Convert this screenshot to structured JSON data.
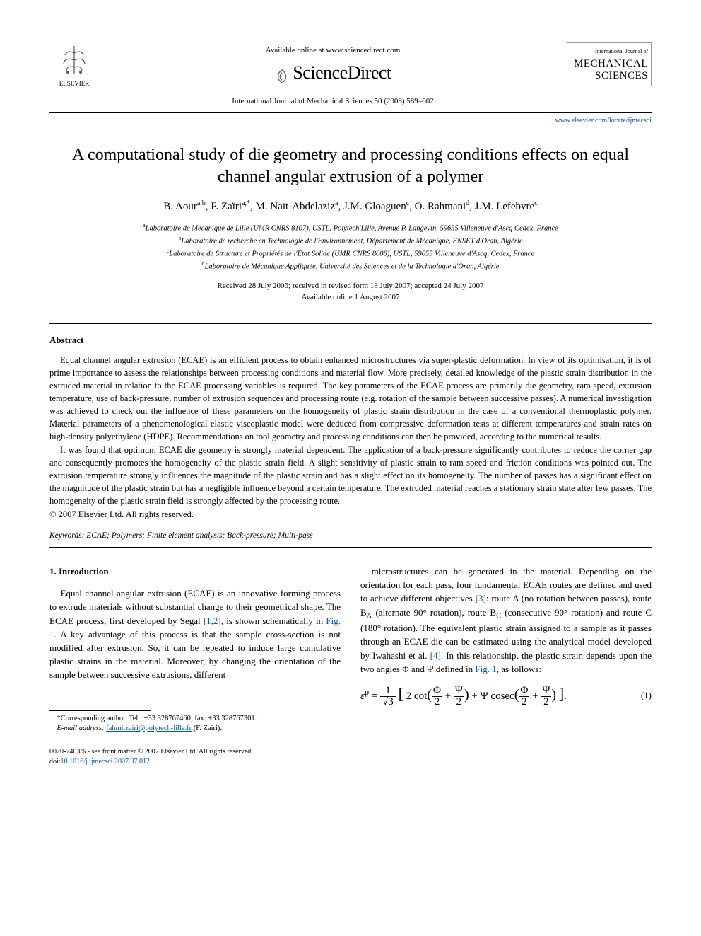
{
  "header": {
    "publisher": "ELSEVIER",
    "available_text": "Available online at www.sciencedirect.com",
    "sd_brand": "ScienceDirect",
    "journal_ref": "International Journal of Mechanical Sciences 50 (2008) 589–602",
    "journal_box_caption": "International Journal of",
    "journal_box_name_l1": "MECHANICAL",
    "journal_box_name_l2": "SCIENCES",
    "locate_url": "www.elsevier.com/locate/ijmecsci"
  },
  "title": "A computational study of die geometry and processing conditions effects on equal channel angular extrusion of a polymer",
  "authors_html": "B. Aour<sup>a,b</sup>, F. Zaïri<sup>a,*</sup>, M. Naït-Abdelaziz<sup>a</sup>, J.M. Gloaguen<sup>c</sup>, O. Rahmani<sup>d</sup>, J.M. Lefebvre<sup>c</sup>",
  "affiliations": {
    "a": "Laboratoire de Mécanique de Lille (UMR CNRS 8107), USTL, Polytech'Lille, Avenue P. Langevin, 59655 Villeneuve d'Ascq Cedex, France",
    "b": "Laboratoire de recherche en Technologie de l'Environnement, Département de Mécanique, ENSET d'Oran, Algérie",
    "c": "Laboratoire de Structure et Propriétés de l'Etat Solide (UMR CNRS 8008), USTL, 59655 Villeneuve d'Ascq, Cedex, France",
    "d": "Laboratoire de Mécanique Appliquée, Université des Sciences et de la Technologie d'Oran, Algérie"
  },
  "dates": {
    "received": "Received 28 July 2006; received in revised form 18 July 2007; accepted 24 July 2007",
    "online": "Available online 1 August 2007"
  },
  "abstract": {
    "heading": "Abstract",
    "p1": "Equal channel angular extrusion (ECAE) is an efficient process to obtain enhanced microstructures via super-plastic deformation. In view of its optimisation, it is of prime importance to assess the relationships between processing conditions and material flow. More precisely, detailed knowledge of the plastic strain distribution in the extruded material in relation to the ECAE processing variables is required. The key parameters of the ECAE process are primarily die geometry, ram speed, extrusion temperature, use of back-pressure, number of extrusion sequences and processing route (e.g. rotation of the sample between successive passes). A numerical investigation was achieved to check out the influence of these parameters on the homogeneity of plastic strain distribution in the case of a conventional thermoplastic polymer. Material parameters of a phenomenological elastic viscoplastic model were deduced from compressive deformation tests at different temperatures and strain rates on high-density polyethylene (HDPE). Recommendations on tool geometry and processing conditions can then be provided, according to the numerical results.",
    "p2": "It was found that optimum ECAE die geometry is strongly material dependent. The application of a back-pressure significantly contributes to reduce the corner gap and consequently promotes the homogeneity of the plastic strain field. A slight sensitivity of plastic strain to ram speed and friction conditions was pointed out. The extrusion temperature strongly influences the magnitude of the plastic strain and has a slight effect on its homogeneity. The number of passes has a significant effect on the magnitude of the plastic strain but has a negligible influence beyond a certain temperature. The extruded material reaches a stationary strain state after few passes. The homogeneity of the plastic strain field is strongly affected by the processing route.",
    "copyright": "© 2007 Elsevier Ltd. All rights reserved."
  },
  "keywords": {
    "label": "Keywords:",
    "list": "ECAE; Polymers; Finite element analysis; Back-pressure; Multi-pass"
  },
  "intro": {
    "heading": "1. Introduction",
    "left": "Equal channel angular extrusion (ECAE) is an innovative forming process to extrude materials without substantial change to their geometrical shape. The ECAE process, first developed by Segal [1,2], is shown schematically in Fig. 1. A key advantage of this process is that the sample cross-section is not modified after extrusion. So, it can be repeated to induce large cumulative plastic strains in the material. Moreover, by changing the orientation of the sample between successive extrusions, different",
    "right": "microstructures can be generated in the material. Depending on the orientation for each pass, four fundamental ECAE routes are defined and used to achieve different objectives [3]: route A (no rotation between passes), route B_A (alternate 90° rotation), route B_C (consecutive 90° rotation) and route C (180° rotation). The equivalent plastic strain assigned to a sample as it passes through an ECAE die can be estimated using the analytical model developed by Iwahashi et al. [4]. In this relationship, the plastic strain depends upon the two angles Φ and Ψ defined in Fig. 1, as follows:"
  },
  "equation": {
    "body": "ε^p = (1/√3) [ 2 cot(Φ/2 + Ψ/2) + Ψ cosec(Φ/2 + Ψ/2) ].",
    "number": "(1)"
  },
  "footnote": {
    "corr": "*Corresponding author. Tel.: +33 328767460; fax: +33 328767301.",
    "email_label": "E-mail address:",
    "email": "fahmi.zairi@polytech-lille.fr",
    "email_who": "(F. Zaïri)."
  },
  "footer": {
    "copy": "0020-7403/$ - see front matter © 2007 Elsevier Ltd. All rights reserved.",
    "doi_label": "doi:",
    "doi": "10.1016/j.ijmecsci.2007.07.012"
  },
  "colors": {
    "link": "#0055cc",
    "text": "#000000",
    "bg": "#ffffff",
    "rule": "#000000"
  }
}
